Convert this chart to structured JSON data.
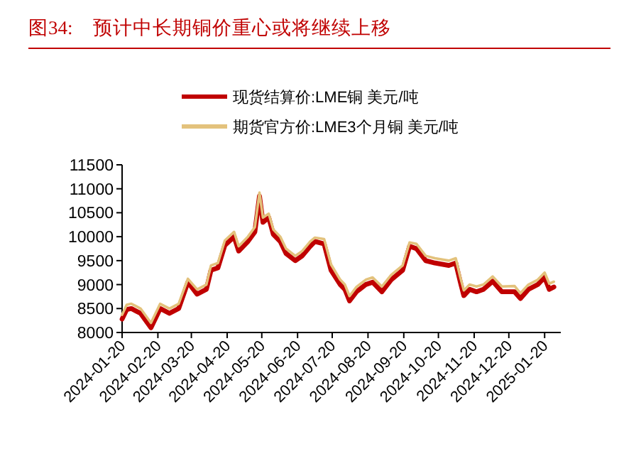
{
  "chart_data": {
    "type": "line",
    "title": "图34:　预计中长期铜价重心或将继续上移",
    "x": [
      "2024-01-20",
      "2024-01-24",
      "2024-01-28",
      "2024-02-01",
      "2024-02-05",
      "2024-02-08",
      "2024-02-14",
      "2024-02-22",
      "2024-03-01",
      "2024-03-09",
      "2024-03-17",
      "2024-03-25",
      "2024-04-02",
      "2024-04-06",
      "2024-04-12",
      "2024-04-18",
      "2024-04-26",
      "2024-04-30",
      "2024-05-08",
      "2024-05-14",
      "2024-05-18",
      "2024-05-21",
      "2024-05-26",
      "2024-05-30",
      "2024-06-05",
      "2024-06-10",
      "2024-06-18",
      "2024-06-24",
      "2024-07-01",
      "2024-07-05",
      "2024-07-13",
      "2024-07-19",
      "2024-07-27",
      "2024-07-31",
      "2024-08-04",
      "2024-08-10",
      "2024-08-18",
      "2024-08-24",
      "2024-09-01",
      "2024-09-09",
      "2024-09-19",
      "2024-09-25",
      "2024-10-01",
      "2024-10-09",
      "2024-10-17",
      "2024-10-29",
      "2024-11-04",
      "2024-11-08",
      "2024-11-11",
      "2024-11-16",
      "2024-11-22",
      "2024-11-28",
      "2024-12-06",
      "2024-12-14",
      "2024-12-25",
      "2024-12-30",
      "2025-01-06",
      "2025-01-14",
      "2025-01-20",
      "2025-01-24",
      "2025-01-28"
    ],
    "series": [
      {
        "name": "现货结算价:LME铜 美元/吨",
        "color": "#c00000",
        "values": [
          8280,
          8480,
          8500,
          8450,
          8400,
          8300,
          8100,
          8500,
          8400,
          8500,
          9050,
          8800,
          8900,
          9300,
          9350,
          9820,
          10000,
          9700,
          9900,
          10100,
          10850,
          10300,
          10400,
          10050,
          9900,
          9650,
          9500,
          9600,
          9800,
          9900,
          9850,
          9300,
          9000,
          8900,
          8660,
          8850,
          9000,
          9050,
          8850,
          9100,
          9300,
          9800,
          9750,
          9500,
          9450,
          9400,
          9450,
          9050,
          8770,
          8900,
          8850,
          8900,
          9070,
          8850,
          8850,
          8710,
          8900,
          9000,
          9150,
          8900,
          8950
        ]
      },
      {
        "name": "期货官方价:LME3个月铜 美元/吨",
        "color": "#e3c27c",
        "values": [
          8370,
          8580,
          8600,
          8550,
          8500,
          8400,
          8200,
          8600,
          8500,
          8600,
          9120,
          8900,
          9000,
          9400,
          9450,
          9920,
          10100,
          9800,
          10000,
          10200,
          10920,
          10400,
          10480,
          10150,
          10000,
          9750,
          9600,
          9700,
          9900,
          9980,
          9950,
          9420,
          9100,
          9000,
          8760,
          8950,
          9100,
          9150,
          8960,
          9200,
          9400,
          9880,
          9850,
          9600,
          9550,
          9500,
          9550,
          9150,
          8880,
          9000,
          8960,
          9000,
          9170,
          8960,
          8970,
          8820,
          9000,
          9100,
          9250,
          9020,
          9060
        ]
      }
    ],
    "xlim": [
      "2024-01-20",
      "2025-02-03"
    ],
    "xticks": [
      "2024-01-20",
      "2024-02-20",
      "2024-03-20",
      "2024-04-20",
      "2024-05-20",
      "2024-06-20",
      "2024-07-20",
      "2024-08-20",
      "2024-09-20",
      "2024-10-20",
      "2024-11-20",
      "2024-12-20",
      "2025-01-20"
    ],
    "ylim": [
      8000,
      11500
    ],
    "yticks": [
      8000,
      8500,
      9000,
      9500,
      10000,
      10500,
      11000,
      11500
    ],
    "legend": "top",
    "grid": false,
    "marker": "none",
    "line_style": "solid"
  }
}
